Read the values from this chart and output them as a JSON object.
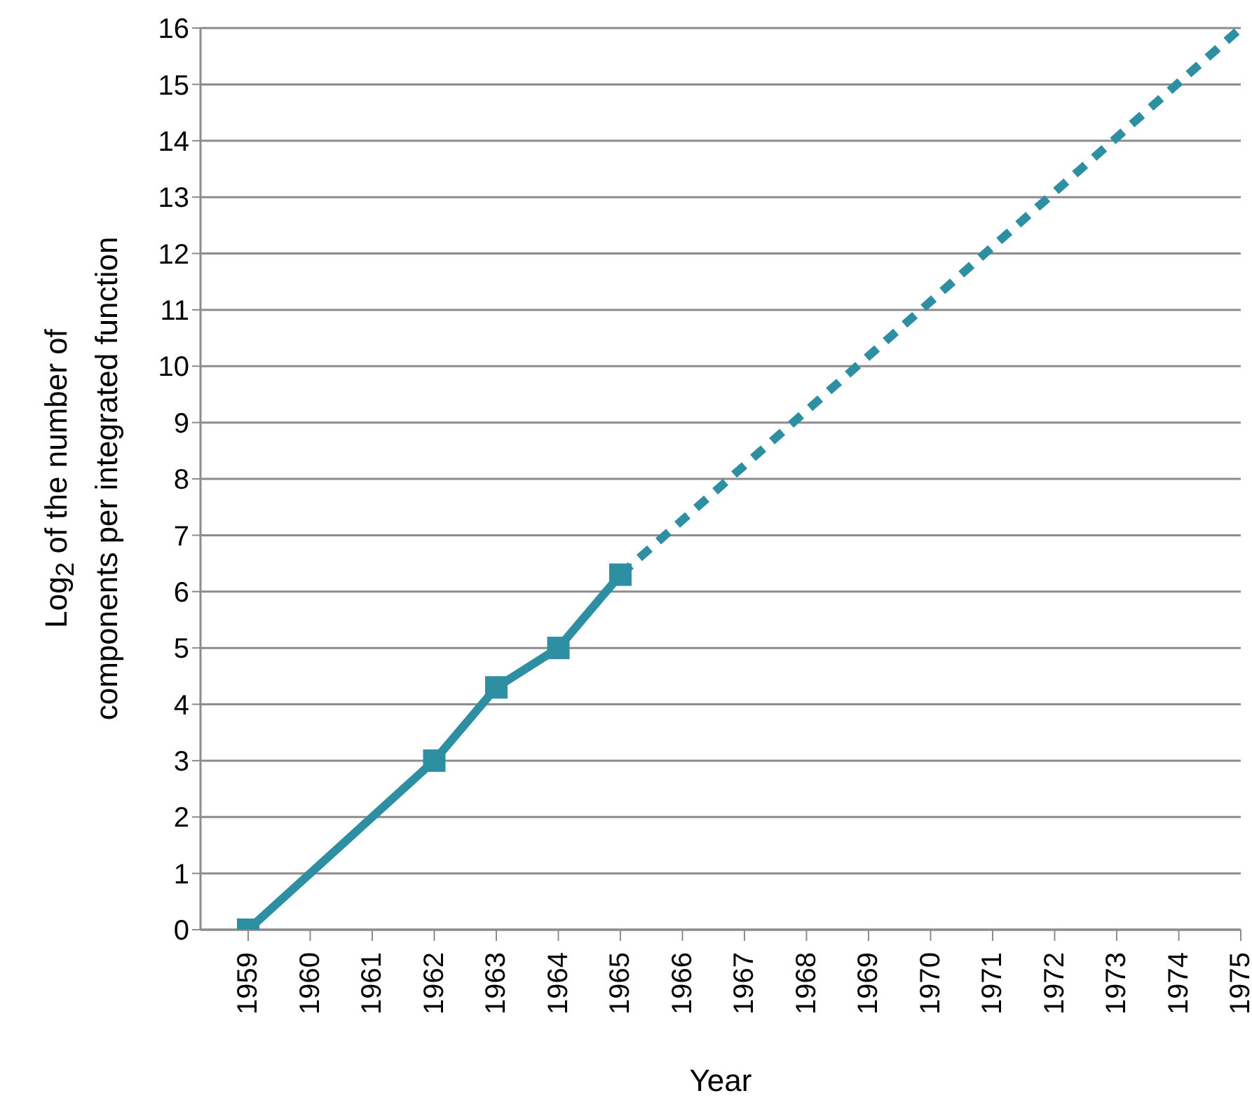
{
  "chart_data": {
    "type": "line",
    "xlabel": "Year",
    "ylabel": "Log$_{2}$ of the number of components per integrated function",
    "categories": [
      "1959",
      "1960",
      "1961",
      "1962",
      "1963",
      "1964",
      "1965",
      "1966",
      "1967",
      "1968",
      "1969",
      "1970",
      "1971",
      "1972",
      "1973",
      "1974",
      "1975"
    ],
    "series": [
      {
        "color": "#2e8fa3",
        "marker": "square",
        "line_style": "solid",
        "values": [
          0,
          null,
          null,
          3,
          4.3,
          5,
          6.3,
          null,
          null,
          null,
          null,
          null,
          null,
          null,
          null,
          null,
          null
        ]
      },
      {
        "color": "#2e8fa3",
        "marker": "none",
        "line_style": "dashed",
        "values": [
          null,
          null,
          null,
          null,
          null,
          null,
          6.3,
          null,
          null,
          null,
          null,
          null,
          null,
          null,
          null,
          null,
          16
        ]
      }
    ],
    "ylim": [
      0,
      16
    ],
    "yticks": [
      0,
      1,
      2,
      3,
      4,
      5,
      6,
      7,
      8,
      9,
      10,
      11,
      12,
      13,
      14,
      15,
      16
    ],
    "grid": "y",
    "legend": false
  }
}
